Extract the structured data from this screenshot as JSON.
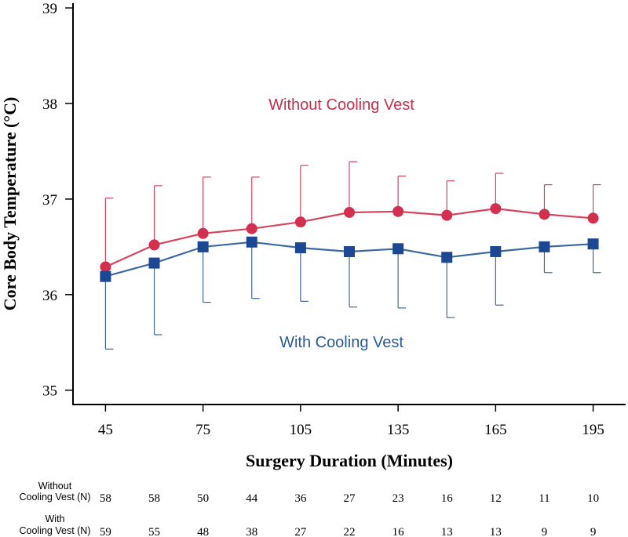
{
  "chart_data": {
    "type": "line",
    "xlabel": "Surgery Duration (Minutes)",
    "ylabel": "Core Body Temperature (°C)",
    "x_ticks": [
      45,
      75,
      105,
      135,
      165,
      195
    ],
    "y_ticks": [
      35,
      36,
      37,
      38,
      39
    ],
    "xlim": [
      35,
      205
    ],
    "ylim": [
      34.85,
      39.05
    ],
    "x": [
      45,
      60,
      75,
      90,
      105,
      120,
      135,
      150,
      165,
      180,
      195
    ],
    "series": [
      {
        "name": "Without Cooling Vest",
        "label": "Without Cooling Vest",
        "color": "#d3304f",
        "line_color": "#d3455f",
        "marker": "circle",
        "error_direction": "up",
        "values": [
          36.29,
          36.52,
          36.64,
          36.69,
          36.76,
          36.86,
          36.87,
          36.83,
          36.9,
          36.84,
          36.8
        ],
        "error_bounds": [
          37.01,
          37.14,
          37.23,
          37.23,
          37.35,
          37.39,
          37.24,
          37.19,
          37.27,
          37.15,
          37.15
        ]
      },
      {
        "name": "With Cooling Vest",
        "label": "With Cooling Vest",
        "color": "#1b4793",
        "line_color": "#3e68a0",
        "marker": "square",
        "error_direction": "down",
        "values": [
          36.19,
          36.33,
          36.5,
          36.55,
          36.49,
          36.45,
          36.48,
          36.39,
          36.45,
          36.5,
          36.53
        ],
        "error_bounds": [
          35.43,
          35.58,
          35.92,
          35.96,
          35.93,
          35.87,
          35.86,
          35.76,
          35.89,
          36.23,
          36.23
        ]
      }
    ],
    "grid": false
  },
  "counts_table": {
    "rows": [
      {
        "label_line1": "Without",
        "label_line2": "Cooling Vest (N)",
        "values": [
          "58",
          "58",
          "50",
          "44",
          "36",
          "27",
          "23",
          "16",
          "12",
          "11",
          "10"
        ]
      },
      {
        "label_line1": "With",
        "label_line2": "Cooling Vest (N)",
        "values": [
          "59",
          "55",
          "48",
          "38",
          "27",
          "22",
          "16",
          "13",
          "13",
          "9",
          "9"
        ]
      }
    ]
  }
}
